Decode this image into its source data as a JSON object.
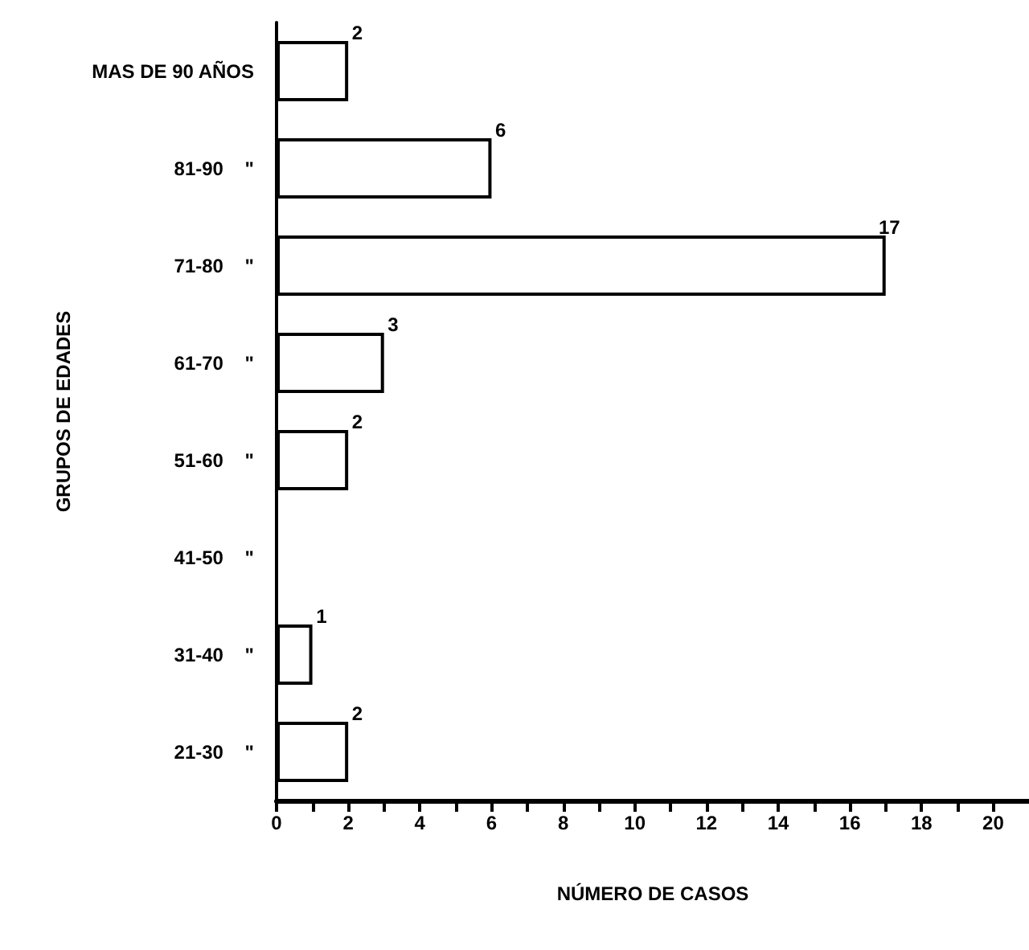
{
  "chart_data": {
    "type": "bar",
    "orientation": "horizontal",
    "xlabel": "NÚMERO DE CASOS",
    "ylabel": "GRUPOS DE EDADES",
    "categories": [
      "MAS DE 90 AÑOS",
      "81-90    \"",
      "71-80    \"",
      "61-70    \"",
      "51-60    \"",
      "41-50    \"",
      "31-40    \"",
      "21-30    \""
    ],
    "values": [
      2,
      6,
      17,
      3,
      2,
      null,
      1,
      2
    ],
    "value_labels": [
      "2",
      "6",
      "17",
      "3",
      "2",
      null,
      "1",
      "2"
    ],
    "color": "#ffffff",
    "xlim": [
      0,
      21
    ],
    "xticks": [
      0,
      {
        "value": 1,
        "label": null
      },
      2,
      {
        "value": 3,
        "label": null
      },
      4,
      {
        "value": 5,
        "label": null
      },
      6,
      {
        "value": 7,
        "label": null
      },
      8,
      {
        "value": 9,
        "label": null
      },
      10,
      {
        "value": 11,
        "label": null
      },
      12,
      {
        "value": 13,
        "label": null
      },
      14,
      {
        "value": 15,
        "label": null
      },
      16,
      {
        "value": 17,
        "label": null
      },
      18,
      {
        "value": 19,
        "label": null
      },
      20
    ],
    "grid": false
  }
}
